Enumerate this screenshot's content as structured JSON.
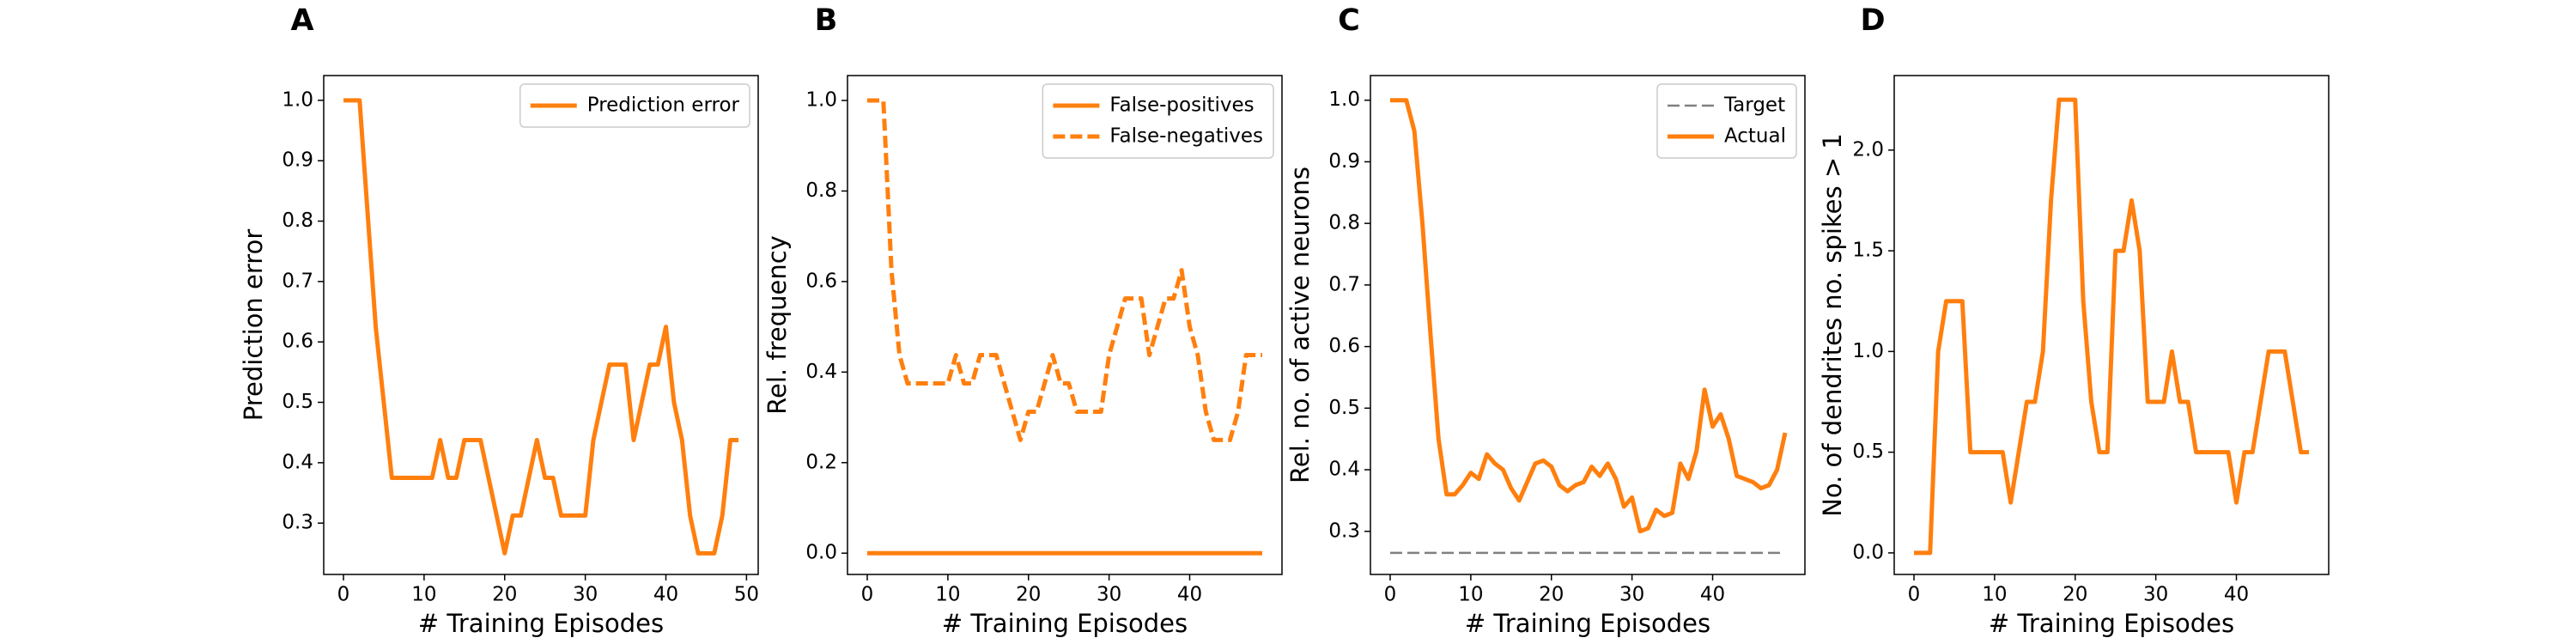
{
  "chart_data": [
    {
      "type": "line",
      "label": "A",
      "xlabel": "# Training Episodes",
      "ylabel": "Prediction error",
      "legend": "upper right",
      "x": [
        0,
        1,
        2,
        3,
        4,
        5,
        6,
        7,
        8,
        9,
        10,
        11,
        12,
        13,
        14,
        15,
        16,
        17,
        18,
        19,
        20,
        21,
        22,
        23,
        24,
        25,
        26,
        27,
        28,
        29,
        30,
        31,
        32,
        33,
        34,
        35,
        36,
        37,
        38,
        39,
        40,
        41,
        42,
        43,
        44,
        45,
        46,
        47,
        48,
        49
      ],
      "series": [
        {
          "name": "Prediction error",
          "color": "#ff7f0e",
          "linestyle": "solid",
          "values": [
            1,
            1,
            1,
            0.8125,
            0.625,
            0.5,
            0.375,
            0.375,
            0.375,
            0.375,
            0.375,
            0.375,
            0.4375,
            0.375,
            0.375,
            0.4375,
            0.4375,
            0.4375,
            0.375,
            0.3125,
            0.25,
            0.3125,
            0.3125,
            0.375,
            0.4375,
            0.375,
            0.375,
            0.3125,
            0.3125,
            0.3125,
            0.3125,
            0.4375,
            0.5,
            0.5625,
            0.5625,
            0.5625,
            0.4375,
            0.5,
            0.5625,
            0.5625,
            0.625,
            0.5,
            0.4375,
            0.3125,
            0.25,
            0.25,
            0.25,
            0.3125,
            0.4375,
            0.4375
          ]
        }
      ],
      "xlim": [
        -2.45,
        51.45
      ],
      "xticks": [
        0,
        10,
        20,
        30,
        40,
        50
      ],
      "ylim": [
        0.215,
        1.041
      ],
      "yticks": [
        0.3,
        0.4,
        0.5,
        0.6,
        0.7,
        0.8,
        0.9,
        {
          "value": 1,
          "label": "1.0"
        }
      ]
    },
    {
      "type": "line",
      "label": "B",
      "xlabel": "# Training Episodes",
      "ylabel": "Rel. frequency",
      "legend": "upper right",
      "x": [
        0,
        1,
        2,
        3,
        4,
        5,
        6,
        7,
        8,
        9,
        10,
        11,
        12,
        13,
        14,
        15,
        16,
        17,
        18,
        19,
        20,
        21,
        22,
        23,
        24,
        25,
        26,
        27,
        28,
        29,
        30,
        31,
        32,
        33,
        34,
        35,
        36,
        37,
        38,
        39,
        40,
        41,
        42,
        43,
        44,
        45,
        46,
        47,
        48,
        49
      ],
      "series": [
        {
          "name": "False-positives",
          "color": "#ff7f0e",
          "linestyle": "solid",
          "values": [
            0,
            0,
            0,
            0,
            0,
            0,
            0,
            0,
            0,
            0,
            0,
            0,
            0,
            0,
            0,
            0,
            0,
            0,
            0,
            0,
            0,
            0,
            0,
            0,
            0,
            0,
            0,
            0,
            0,
            0,
            0,
            0,
            0,
            0,
            0,
            0,
            0,
            0,
            0,
            0,
            0,
            0,
            0,
            0,
            0,
            0,
            0,
            0,
            0,
            0
          ]
        },
        {
          "name": "False-negatives",
          "color": "#ff7f0e",
          "linestyle": "dashed",
          "values": [
            1,
            1,
            1,
            0.625,
            0.4375,
            0.375,
            0.375,
            0.375,
            0.375,
            0.375,
            0.375,
            0.4375,
            0.375,
            0.375,
            0.4375,
            0.4375,
            0.4375,
            0.375,
            0.3125,
            0.25,
            0.3125,
            0.3125,
            0.375,
            0.4375,
            0.375,
            0.375,
            0.3125,
            0.3125,
            0.3125,
            0.3125,
            0.4375,
            0.5,
            0.5625,
            0.5625,
            0.5625,
            0.4375,
            0.5,
            0.5625,
            0.5625,
            0.625,
            0.5,
            0.4375,
            0.3125,
            0.25,
            0.25,
            0.25,
            0.3125,
            0.4375,
            0.4375,
            0.4375
          ]
        }
      ],
      "xlim": [
        -2.45,
        51.45
      ],
      "xticks": [
        0,
        10,
        20,
        30,
        40
      ],
      "ylim": [
        -0.047,
        1.055
      ],
      "yticks": [
        {
          "value": 0,
          "label": "0.0"
        },
        0.2,
        0.4,
        0.6,
        0.8,
        {
          "value": 1,
          "label": "1.0"
        }
      ]
    },
    {
      "type": "line",
      "label": "C",
      "xlabel": "# Training Episodes",
      "ylabel": "Rel. no. of active neurons",
      "legend": "upper right",
      "x": [
        0,
        1,
        2,
        3,
        4,
        5,
        6,
        7,
        8,
        9,
        10,
        11,
        12,
        13,
        14,
        15,
        16,
        17,
        18,
        19,
        20,
        21,
        22,
        23,
        24,
        25,
        26,
        27,
        28,
        29,
        30,
        31,
        32,
        33,
        34,
        35,
        36,
        37,
        38,
        39,
        40,
        41,
        42,
        43,
        44,
        45,
        46,
        47,
        48,
        49
      ],
      "series": [
        {
          "name": "Target",
          "color": "#808080",
          "linestyle": "dashed",
          "values": [
            0.265,
            0.265,
            0.265,
            0.265,
            0.265,
            0.265,
            0.265,
            0.265,
            0.265,
            0.265,
            0.265,
            0.265,
            0.265,
            0.265,
            0.265,
            0.265,
            0.265,
            0.265,
            0.265,
            0.265,
            0.265,
            0.265,
            0.265,
            0.265,
            0.265,
            0.265,
            0.265,
            0.265,
            0.265,
            0.265,
            0.265,
            0.265,
            0.265,
            0.265,
            0.265,
            0.265,
            0.265,
            0.265,
            0.265,
            0.265,
            0.265,
            0.265,
            0.265,
            0.265,
            0.265,
            0.265,
            0.265,
            0.265,
            0.265,
            0.265
          ]
        },
        {
          "name": "Actual",
          "color": "#ff7f0e",
          "linestyle": "solid",
          "values": [
            1,
            1,
            1,
            0.95,
            0.8,
            0.62,
            0.45,
            0.36,
            0.36,
            0.375,
            0.395,
            0.385,
            0.425,
            0.41,
            0.4,
            0.37,
            0.35,
            0.38,
            0.41,
            0.415,
            0.405,
            0.375,
            0.365,
            0.375,
            0.38,
            0.405,
            0.39,
            0.41,
            0.385,
            0.34,
            0.355,
            0.3,
            0.305,
            0.335,
            0.325,
            0.33,
            0.41,
            0.385,
            0.43,
            0.53,
            0.47,
            0.49,
            0.45,
            0.39,
            0.385,
            0.38,
            0.37,
            0.375,
            0.4,
            0.46
          ]
        }
      ],
      "xlim": [
        -2.45,
        51.45
      ],
      "xticks": [
        0,
        10,
        20,
        30,
        40
      ],
      "ylim": [
        0.23,
        1.04
      ],
      "yticks": [
        0.3,
        0.4,
        0.5,
        0.6,
        0.7,
        0.8,
        0.9,
        {
          "value": 1,
          "label": "1.0"
        }
      ]
    },
    {
      "type": "line",
      "label": "D",
      "xlabel": "# Training Episodes",
      "ylabel": "No. of dendrites no. spikes > 1",
      "x": [
        0,
        1,
        2,
        3,
        4,
        5,
        6,
        7,
        8,
        9,
        10,
        11,
        12,
        13,
        14,
        15,
        16,
        17,
        18,
        19,
        20,
        21,
        22,
        23,
        24,
        25,
        26,
        27,
        28,
        29,
        30,
        31,
        32,
        33,
        34,
        35,
        36,
        37,
        38,
        39,
        40,
        41,
        42,
        43,
        44,
        45,
        46,
        47,
        48,
        49
      ],
      "series": [
        {
          "color": "#ff7f0e",
          "linestyle": "solid",
          "values": [
            0,
            0,
            0,
            1,
            1.25,
            1.25,
            1.25,
            0.5,
            0.5,
            0.5,
            0.5,
            0.5,
            0.25,
            0.5,
            0.75,
            0.75,
            1,
            1.75,
            2.25,
            2.25,
            2.25,
            1.25,
            0.75,
            0.5,
            0.5,
            1.5,
            1.5,
            1.75,
            1.5,
            0.75,
            0.75,
            0.75,
            1,
            0.75,
            0.75,
            0.5,
            0.5,
            0.5,
            0.5,
            0.5,
            0.25,
            0.5,
            0.5,
            0.75,
            1,
            1,
            1,
            0.75,
            0.5,
            0.5
          ]
        }
      ],
      "xlim": [
        -2.45,
        51.45
      ],
      "xticks": [
        0,
        10,
        20,
        30,
        40
      ],
      "ylim": [
        -0.107,
        2.37
      ],
      "yticks": [
        {
          "value": 0,
          "label": "0.0"
        },
        0.5,
        {
          "value": 1,
          "label": "1.0"
        },
        1.5,
        {
          "value": 2,
          "label": "2.0"
        }
      ]
    }
  ]
}
